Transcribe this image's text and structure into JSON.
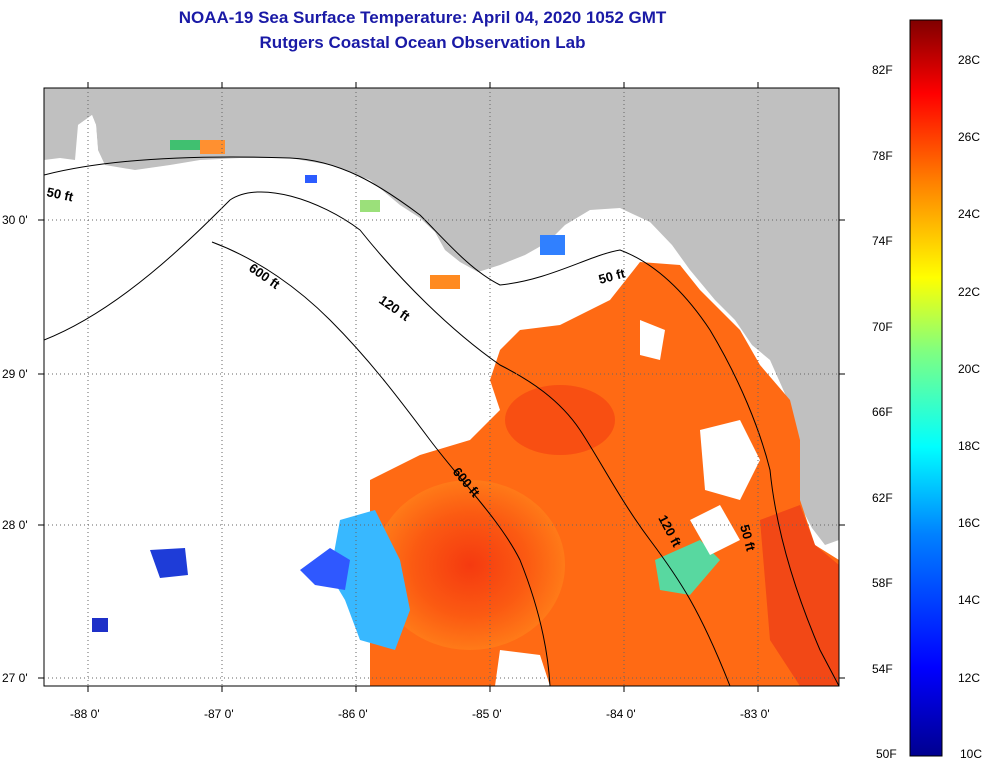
{
  "header": {
    "title": "NOAA-19 Sea Surface Temperature:  April 04, 2020 1052 GMT",
    "subtitle": "Rutgers Coastal Ocean Observation Lab"
  },
  "map": {
    "region": "Eastern Gulf of Mexico / West Florida Shelf",
    "lat_ticks": [
      "30 0'",
      "29 0'",
      "28 0'",
      "27 0'"
    ],
    "lon_ticks": [
      "-88 0'",
      "-87 0'",
      "-86 0'",
      "-85 0'",
      "-84 0'",
      "-83 0'"
    ],
    "contour_labels": [
      "50 ft",
      "600 ft",
      "120 ft",
      "50 ft",
      "600 ft",
      "120 ft",
      "50 ft"
    ],
    "land_color": "#c0c0c0",
    "cloud_color": "#ffffff"
  },
  "colorbar": {
    "fahrenheit": [
      "82F",
      "78F",
      "74F",
      "70F",
      "66F",
      "62F",
      "58F",
      "54F",
      "50F"
    ],
    "celsius": [
      "28C",
      "26C",
      "24C",
      "22C",
      "20C",
      "18C",
      "16C",
      "14C",
      "12C",
      "10C"
    ],
    "stops": [
      "#00008f",
      "#0000ff",
      "#0080ff",
      "#00ffff",
      "#80ff80",
      "#ffff00",
      "#ff8000",
      "#ff0000",
      "#800000"
    ]
  }
}
